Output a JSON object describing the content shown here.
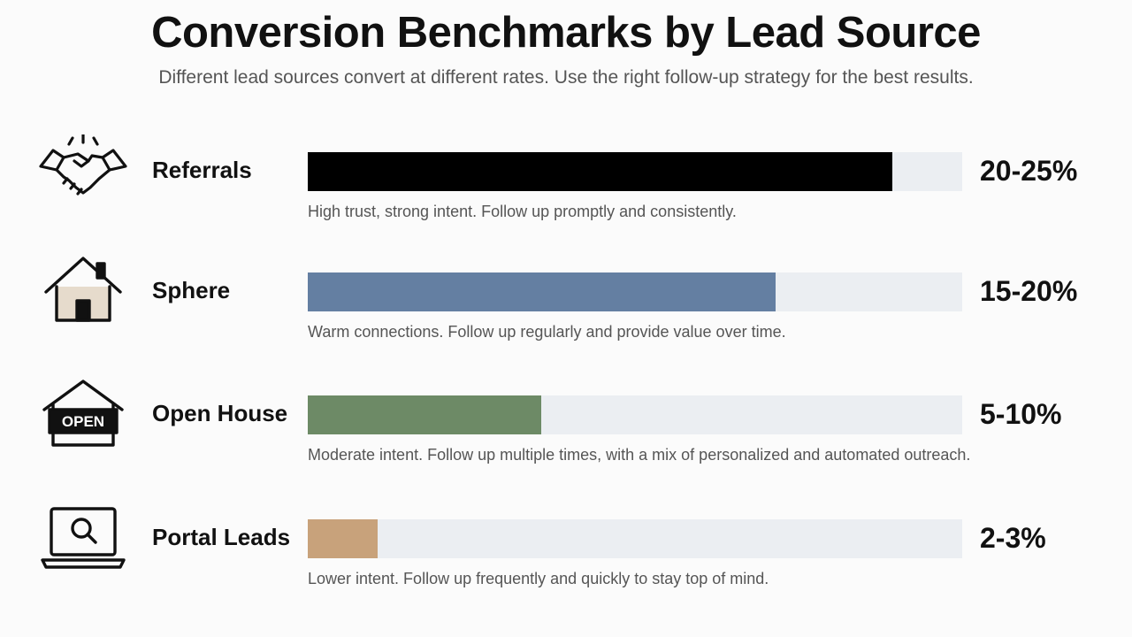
{
  "title": "Conversion Benchmarks by Lead Source",
  "subtitle": "Different lead sources convert at different rates. Use the right follow-up strategy for the best results.",
  "chart_data": {
    "type": "bar",
    "orientation": "horizontal",
    "scale_max": 28,
    "categories": [
      "Referrals",
      "Sphere",
      "Open House",
      "Portal Leads"
    ],
    "series": [
      {
        "values": [
          25,
          20,
          10,
          3
        ],
        "ranges": [
          [
            20,
            25
          ],
          [
            15,
            20
          ],
          [
            5,
            10
          ],
          [
            2,
            3
          ]
        ]
      }
    ],
    "value_labels": [
      "20-25%",
      "15-20%",
      "5-10%",
      "2-3%"
    ],
    "colors": [
      "#000000",
      "#647fa2",
      "#6d8a66",
      "#c8a27b"
    ],
    "track_color": "#ebeef2",
    "grid": false
  },
  "rows": [
    {
      "label": "Referrals",
      "value_label": "20-25%",
      "note": "High trust, strong intent. Follow up promptly and consistently.",
      "icon": "handshake-icon"
    },
    {
      "label": "Sphere",
      "value_label": "15-20%",
      "note": "Warm connections. Follow up regularly and provide value over time.",
      "icon": "house-icon"
    },
    {
      "label": "Open House",
      "value_label": "5-10%",
      "note": "Moderate intent. Follow up multiple times, with a mix of personalized and automated outreach.",
      "icon": "open-house-sign-icon",
      "icon_text": "OPEN"
    },
    {
      "label": "Portal Leads",
      "value_label": "2-3%",
      "note": "Lower intent. Follow up frequently and quickly to stay top of mind.",
      "icon": "laptop-search-icon"
    }
  ]
}
